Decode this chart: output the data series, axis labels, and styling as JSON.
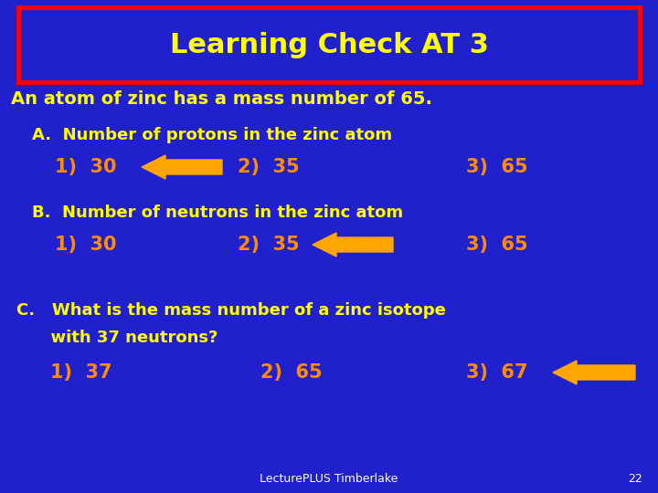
{
  "bg_color": "#2020CC",
  "title": "Learning Check AT 3",
  "title_color": "#FFFF00",
  "title_box_edge_color": "#FF0000",
  "title_box_face_color": "#2020CC",
  "text_color": "#FFFF00",
  "options_color": "#FF8C00",
  "arrow_color": "#FFA500",
  "subtitle": "An atom of zinc has a mass number of 65.",
  "section_A_header": "A.  Number of protons in the zinc atom",
  "section_A_opts": [
    "1)  30",
    "2)  35",
    "3)  65"
  ],
  "section_B_header": "B.  Number of neutrons in the zinc atom",
  "section_B_opts": [
    "1)  30",
    "2)  35",
    "3)  65"
  ],
  "section_C_header": "C.   What is the mass number of a zinc isotope",
  "section_C_header2": "      with 37 neutrons?",
  "section_C_opts": [
    "1)  37",
    "2)  65",
    "3)  67"
  ],
  "footer": "LecturePLUS Timberlake",
  "footer_color": "#FFFFFF",
  "page_num": "22",
  "page_num_color": "#FFFFFF",
  "title_fontsize": 22,
  "subtitle_fontsize": 14,
  "header_fontsize": 13,
  "opts_fontsize": 15,
  "footer_fontsize": 9
}
